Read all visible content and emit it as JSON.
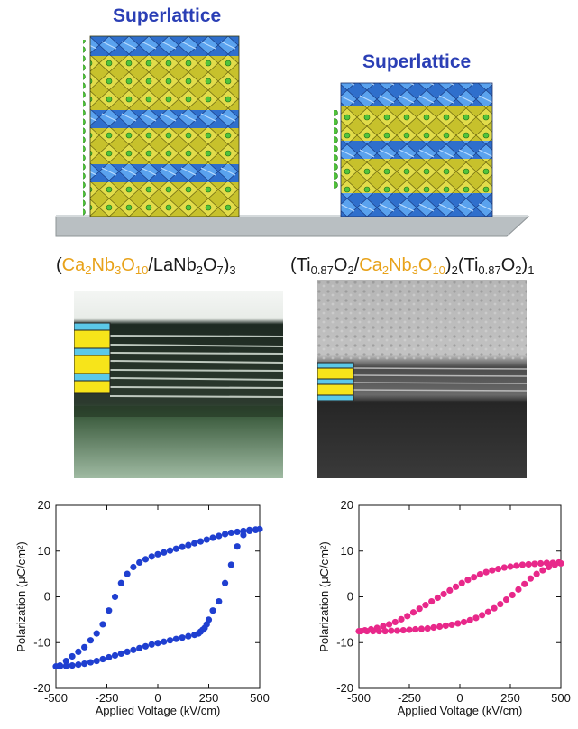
{
  "labels": {
    "superlattice_left": "Superlattice",
    "superlattice_right": "Superlattice"
  },
  "formula_left": {
    "open": "(",
    "part1": "Ca",
    "sub1": "2",
    "part2": "Nb",
    "sub2": "3",
    "part3": "O",
    "sub3": "10",
    "slash": "/",
    "part4": "LaNb",
    "sub4": "2",
    "part5": "O",
    "sub5": "7",
    "close": ")",
    "sub6": "3"
  },
  "formula_right": {
    "open": "(",
    "part1": "Ti",
    "sub1": "0.87",
    "part2": "O",
    "sub2": "2",
    "slash": "/",
    "part3": "Ca",
    "sub3": "2",
    "part4": "Nb",
    "sub4": "3",
    "part5": "O",
    "sub5": "10",
    "close": ")",
    "sub6": "2",
    "open2": "(",
    "part6": "Ti",
    "sub7": "0.87",
    "part7": "O",
    "sub8": "2",
    "close2": ")",
    "sub9": "1"
  },
  "colors": {
    "superlattice_text": "#2b3fb5",
    "oxide_yellow": "#e8a21a",
    "octahedra_blue": "#3a7fd8",
    "octahedra_yellow": "#d8d23a",
    "sphere_green": "#4fc23a",
    "substrate": "#b9bfc2",
    "left_series": "#1f3fd0",
    "right_series": "#e8288a",
    "stack_cyan": "#5bc8e8",
    "stack_yellow": "#f7e41a"
  },
  "chart_data": [
    {
      "type": "scatter",
      "xlabel": "Applied Voltage (kV/cm)",
      "ylabel": "Polarization (μC/cm²)",
      "xlim": [
        -500,
        500
      ],
      "ylim": [
        -20,
        20
      ],
      "xticks": [
        "-500",
        "-250",
        "0",
        "250",
        "500"
      ],
      "yticks": [
        "20",
        "10",
        "0",
        "-10",
        "-20"
      ],
      "grid": false,
      "series": [
        {
          "color": "#1f3fd0",
          "x": [
            -480,
            -450,
            -420,
            -390,
            -360,
            -330,
            -300,
            -270,
            -240,
            -210,
            -180,
            -150,
            -120,
            -90,
            -60,
            -30,
            0,
            30,
            60,
            90,
            120,
            150,
            180,
            210,
            240,
            270,
            300,
            330,
            360,
            390,
            420,
            450,
            480,
            500,
            480,
            450,
            420,
            390,
            360,
            330,
            300,
            270,
            250,
            240,
            230,
            220,
            210,
            200,
            180,
            150,
            120,
            90,
            60,
            30,
            0,
            -30,
            -60,
            -90,
            -120,
            -150,
            -180,
            -210,
            -240,
            -270,
            -300,
            -330,
            -360,
            -390,
            -420,
            -450,
            -480,
            -500
          ],
          "y": [
            -15,
            -14,
            -13,
            -12,
            -11,
            -9.5,
            -8,
            -6,
            -3,
            0,
            3,
            5,
            6.5,
            7.5,
            8.2,
            8.8,
            9.3,
            9.7,
            10.1,
            10.5,
            10.9,
            11.3,
            11.7,
            12.1,
            12.5,
            12.9,
            13.3,
            13.7,
            14,
            14.2,
            14.4,
            14.6,
            14.7,
            14.8,
            14.6,
            14.4,
            13.5,
            11,
            7,
            3,
            -1,
            -3,
            -5,
            -6,
            -6.8,
            -7.2,
            -7.6,
            -8,
            -8.3,
            -8.6,
            -8.9,
            -9.2,
            -9.5,
            -9.8,
            -10.1,
            -10.4,
            -10.8,
            -11.2,
            -11.6,
            -12,
            -12.4,
            -12.8,
            -13.2,
            -13.6,
            -14,
            -14.3,
            -14.6,
            -14.8,
            -15,
            -15.1,
            -15.2,
            -15.2
          ]
        }
      ]
    },
    {
      "type": "scatter",
      "xlabel": "Applied Voltage (kV/cm)",
      "ylabel": "Polarization (μC/cm²)",
      "xlim": [
        -500,
        500
      ],
      "ylim": [
        -20,
        20
      ],
      "xticks": [
        "-500",
        "-250",
        "0",
        "250",
        "500"
      ],
      "yticks": [
        "20",
        "10",
        "0",
        "-10",
        "-20"
      ],
      "grid": false,
      "series": [
        {
          "color": "#e8288a",
          "x": [
            -500,
            -470,
            -440,
            -410,
            -380,
            -350,
            -320,
            -290,
            -260,
            -230,
            -200,
            -170,
            -140,
            -110,
            -80,
            -50,
            -20,
            10,
            40,
            70,
            100,
            130,
            160,
            190,
            220,
            250,
            280,
            310,
            340,
            370,
            400,
            430,
            460,
            490,
            500,
            470,
            440,
            410,
            380,
            350,
            320,
            290,
            260,
            230,
            200,
            170,
            140,
            110,
            80,
            50,
            20,
            -10,
            -40,
            -70,
            -100,
            -130,
            -160,
            -190,
            -220,
            -250,
            -280,
            -310,
            -340,
            -370,
            -400,
            -430,
            -460,
            -490
          ],
          "y": [
            -7.5,
            -7.3,
            -7.1,
            -6.8,
            -6.4,
            -6,
            -5.5,
            -4.9,
            -4.2,
            -3.4,
            -2.6,
            -1.8,
            -1,
            -0.2,
            0.6,
            1.4,
            2.2,
            3,
            3.7,
            4.3,
            4.9,
            5.4,
            5.8,
            6.1,
            6.4,
            6.6,
            6.8,
            7,
            7.1,
            7.2,
            7.3,
            7.4,
            7.4,
            7.5,
            7.3,
            7,
            6.5,
            5.8,
            5,
            4,
            2.8,
            1.6,
            0.4,
            -0.6,
            -1.6,
            -2.5,
            -3.3,
            -4,
            -4.6,
            -5.1,
            -5.5,
            -5.8,
            -6.1,
            -6.3,
            -6.5,
            -6.7,
            -6.9,
            -7,
            -7.1,
            -7.2,
            -7.3,
            -7.4,
            -7.4,
            -7.5,
            -7.5,
            -7.5,
            -7.5,
            -7.5
          ]
        }
      ]
    }
  ]
}
